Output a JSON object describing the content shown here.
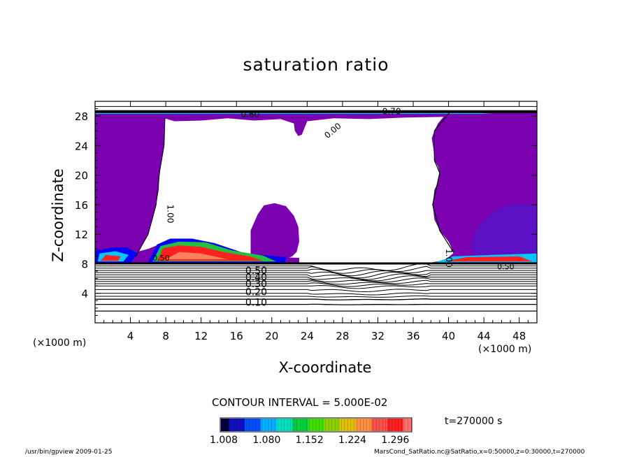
{
  "chart_data": {
    "type": "contour",
    "title": "saturation ratio",
    "xlabel": "X-coordinate",
    "ylabel": "Z-coordinate",
    "x_unit_left": "(×1000 m)",
    "x_unit_right": "(×1000 m)",
    "xlim": [
      0,
      50
    ],
    "ylim": [
      0,
      30
    ],
    "x_ticks": [
      "4",
      "8",
      "12",
      "16",
      "20",
      "24",
      "28",
      "32",
      "36",
      "40",
      "44",
      "48"
    ],
    "y_ticks": [
      "4",
      "8",
      "12",
      "16",
      "20",
      "24",
      "28"
    ],
    "contour_labels": [
      "0.10",
      "0.20",
      "0.30",
      "0.40",
      "0.50",
      "1.00",
      "1.00",
      "0.00",
      "0.70",
      "0.60",
      "0.50",
      "0.50"
    ],
    "colorbar": {
      "min": 1.008,
      "max": 1.332,
      "tick_labels": [
        "1.008",
        "1.080",
        "1.152",
        "1.224",
        "1.296"
      ]
    },
    "colors": {
      "saturated_fill": "#7a00b0",
      "deep_blue": "#0000ff",
      "cyan": "#00c8ff",
      "green": "#20c040",
      "red": "#ff2020",
      "orange": "#ff8060",
      "contour": "#000000"
    }
  },
  "annotations": {
    "contour_interval": "CONTOUR INTERVAL = 5.000E-02",
    "time": "t=270000 s",
    "footer_left": "/usr/bin/gpview  2009-01-25",
    "footer_right": "MarsCond_SatRatio.nc@SatRatio,x=0:50000,z=0:30000,t=270000"
  }
}
